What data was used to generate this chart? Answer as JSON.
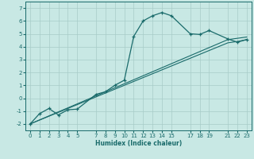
{
  "xlabel": "Humidex (Indice chaleur)",
  "bg_color": "#c8e8e4",
  "line_color": "#1a6b6b",
  "grid_color": "#a8ccc8",
  "ylim": [
    -2.5,
    7.5
  ],
  "xlim": [
    -0.5,
    23.5
  ],
  "yticks": [
    -2,
    -1,
    0,
    1,
    2,
    3,
    4,
    5,
    6,
    7
  ],
  "xtick_positions": [
    0,
    1,
    2,
    3,
    4,
    5,
    7,
    8,
    9,
    10,
    11,
    12,
    13,
    14,
    15,
    17,
    18,
    19,
    21,
    22,
    23
  ],
  "xtick_labels": [
    "0",
    "1",
    "2",
    "3",
    "4",
    "5",
    "7",
    "8",
    "9",
    "10",
    "11",
    "12",
    "13",
    "14",
    "15",
    "17",
    "18",
    "19",
    "21",
    "22",
    "23"
  ],
  "line1_x": [
    0,
    1,
    2,
    3,
    4,
    5,
    7,
    8,
    9,
    10,
    11,
    12,
    13,
    14,
    15,
    17,
    18,
    19,
    21,
    22,
    23
  ],
  "line1_y": [
    -2.0,
    -1.2,
    -0.8,
    -1.3,
    -0.9,
    -0.85,
    0.3,
    0.5,
    1.0,
    1.4,
    4.8,
    6.0,
    6.4,
    6.65,
    6.4,
    5.0,
    4.95,
    5.25,
    4.6,
    4.35,
    4.55
  ],
  "line2_x": [
    0,
    21,
    22,
    23
  ],
  "line2_y": [
    -2.0,
    4.3,
    4.4,
    4.55
  ],
  "line3_x": [
    0,
    21,
    22,
    23
  ],
  "line3_y": [
    -2.0,
    4.55,
    4.65,
    4.75
  ],
  "xlabel_fontsize": 5.5,
  "tick_fontsize": 5.0
}
